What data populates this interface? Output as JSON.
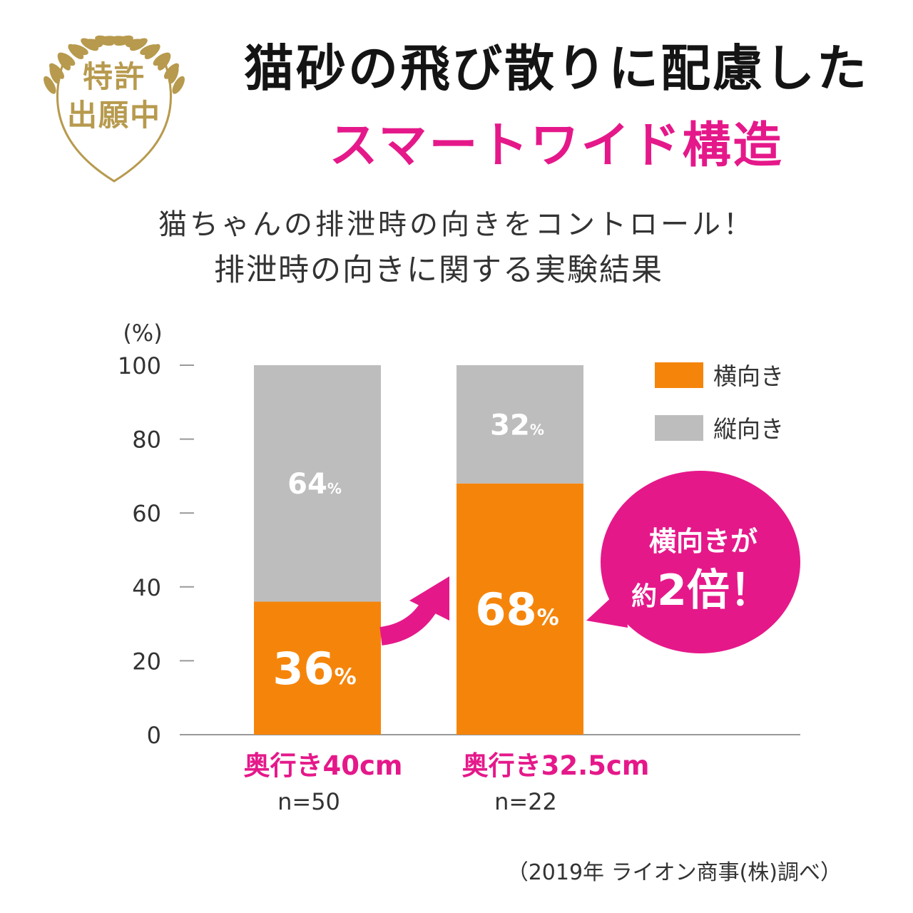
{
  "badge": {
    "line1": "特許",
    "line2": "出願中",
    "color": "#b79a4e"
  },
  "header": {
    "title": "猫砂の飛び散りに配慮した",
    "subtitle": "スマートワイド構造",
    "line1": "猫ちゃんの排泄時の向きをコントロール！",
    "line2": "排泄時の向きに関する実験結果"
  },
  "chart_data": {
    "type": "bar",
    "stacked": true,
    "ylabel": "(%)",
    "ylim": [
      0,
      100
    ],
    "yticks": [
      0,
      20,
      40,
      60,
      80,
      100
    ],
    "categories": [
      "奥行き40cm",
      "奥行き32.5cm"
    ],
    "sample_sizes": [
      "n=50",
      "n=22"
    ],
    "series": [
      {
        "name": "横向き",
        "values": [
          36,
          68
        ],
        "labels": [
          "36",
          "68"
        ],
        "color": "#f5850a"
      },
      {
        "name": "縦向き",
        "values": [
          64,
          32
        ],
        "labels": [
          "64",
          "32"
        ],
        "color": "#bdbdbd"
      }
    ],
    "unit_suffix": "%",
    "legend": "top-right",
    "callout": {
      "line1": "横向きが",
      "prefix": "約",
      "emphasis": "2倍！",
      "color": "#e5188a"
    },
    "accent_color": "#e5188a"
  },
  "footer": {
    "source": "（2019年 ライオン商事(株)調べ）"
  }
}
